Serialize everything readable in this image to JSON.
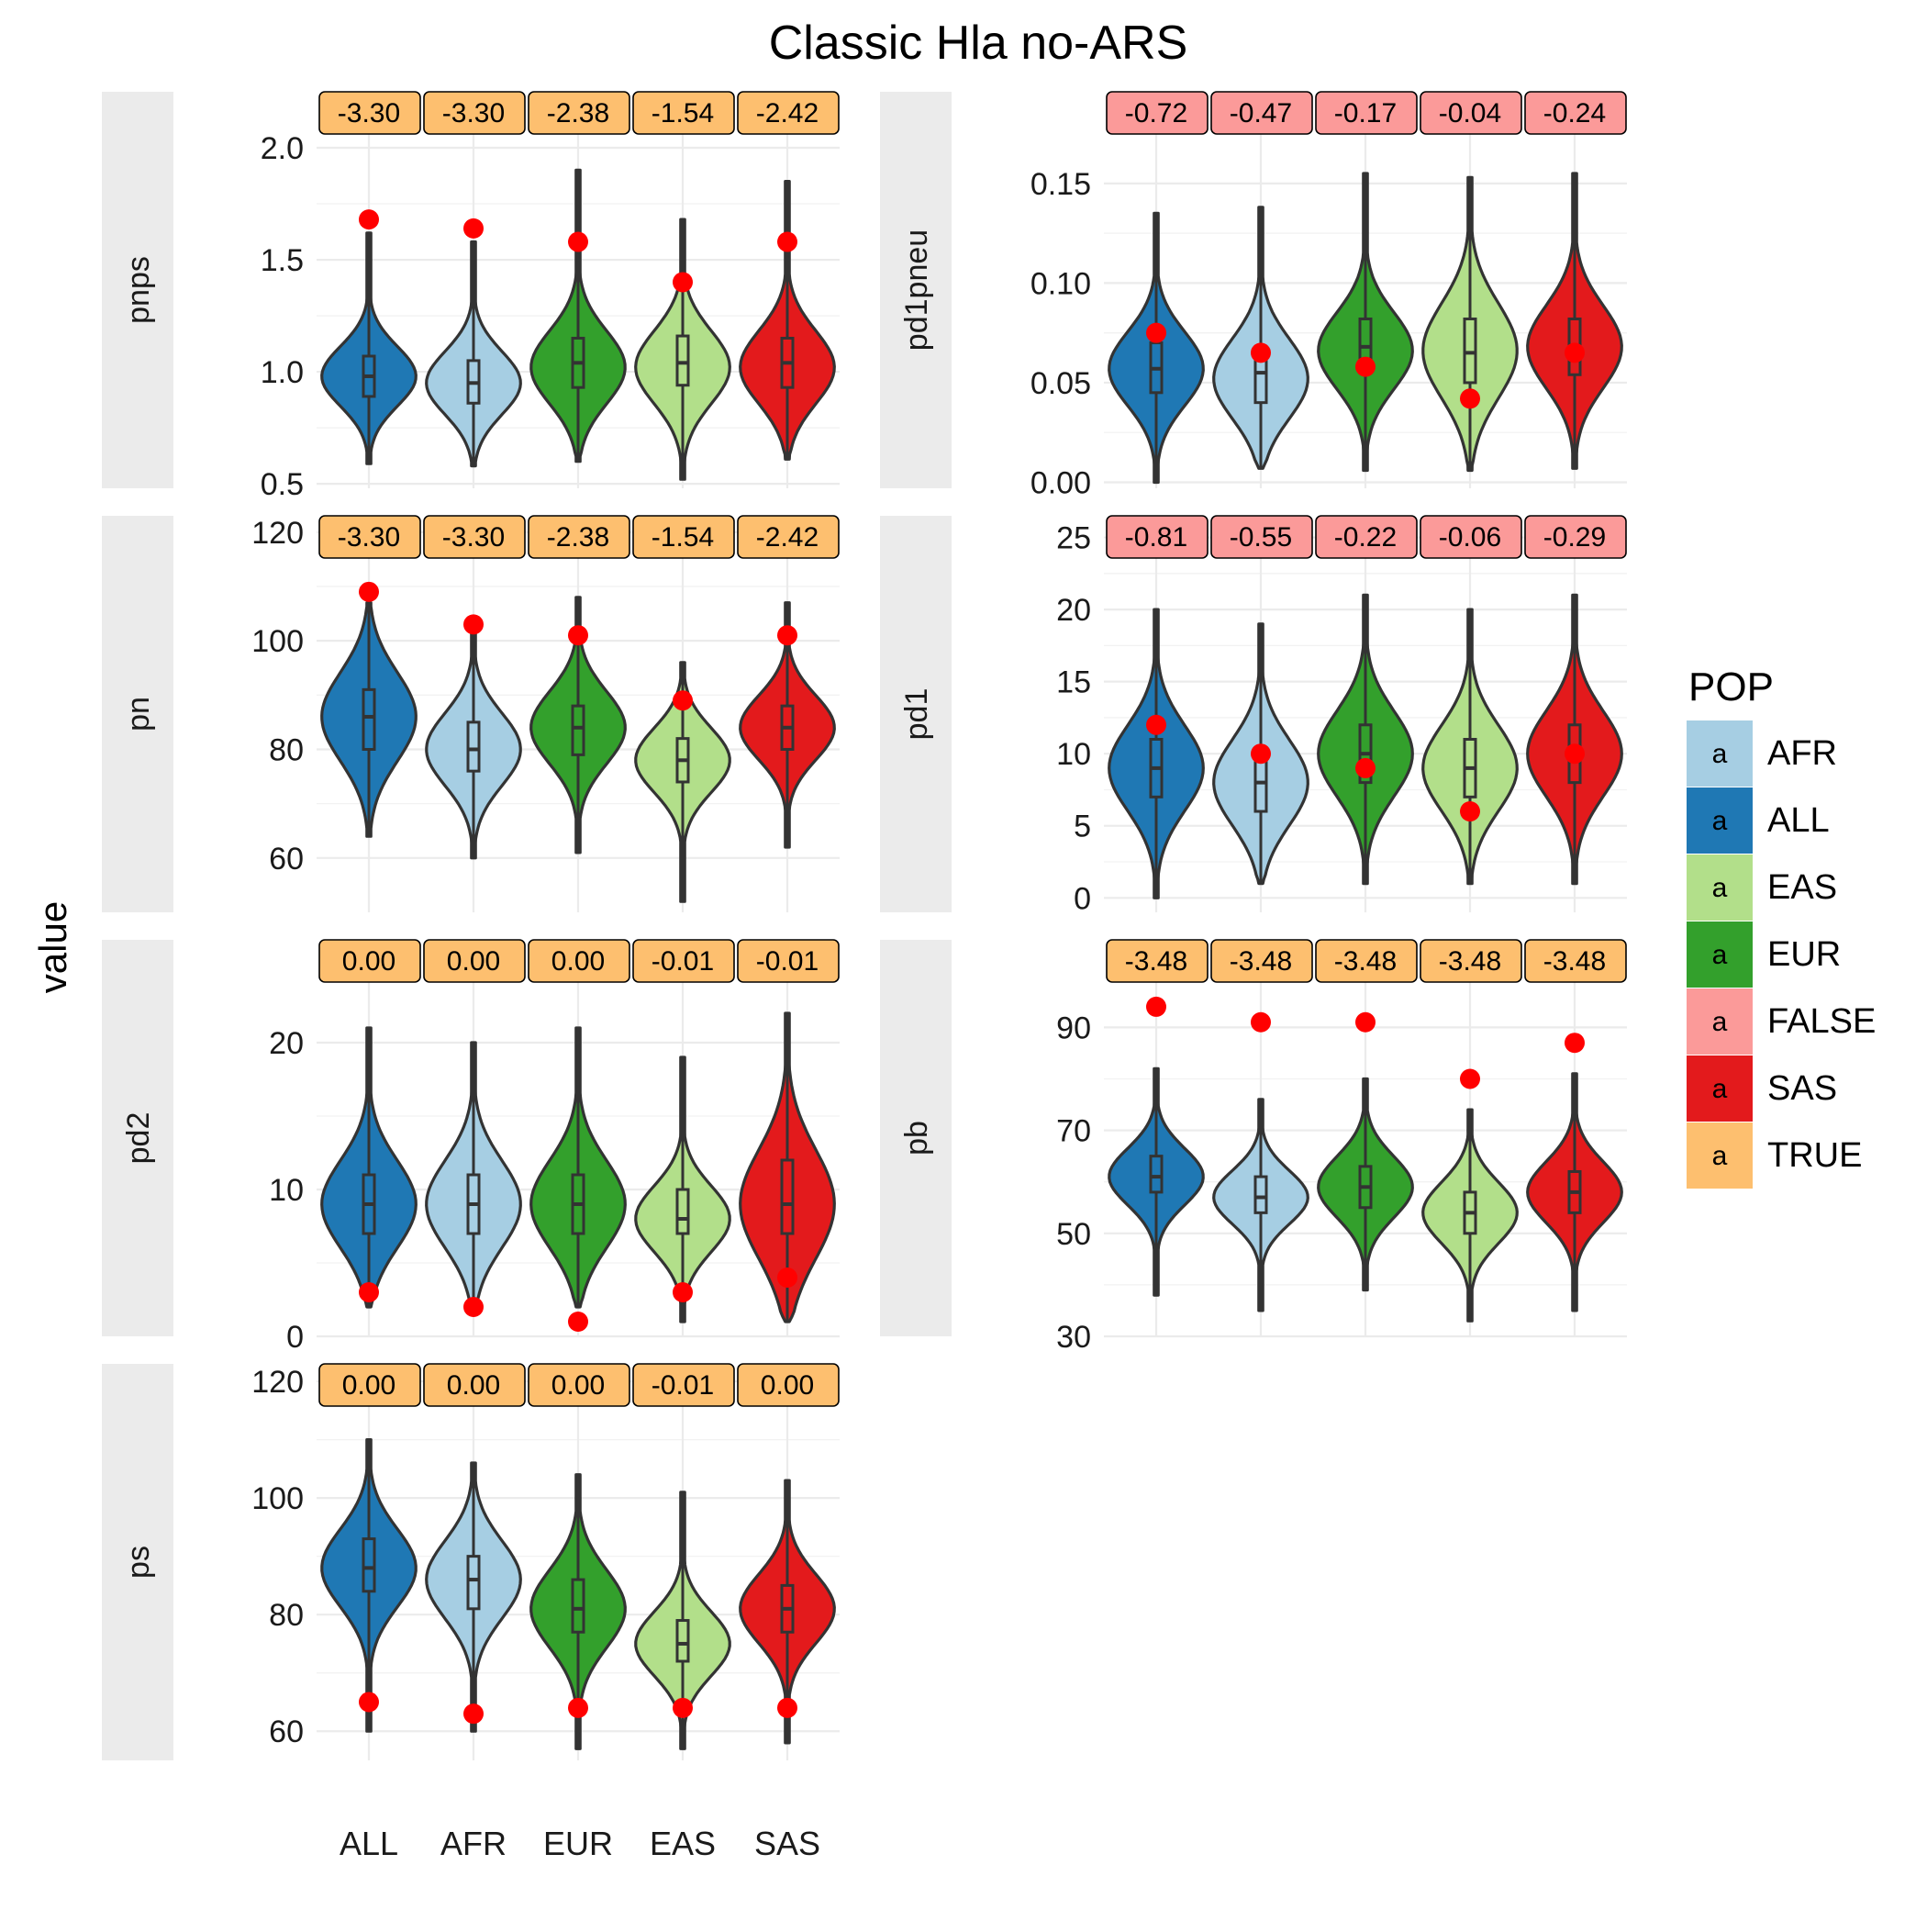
{
  "chart_data": {
    "type": "violin",
    "title": "Classic Hla no-ARS",
    "ylabel": "value",
    "xlabel": "",
    "categories": [
      "ALL",
      "AFR",
      "EUR",
      "EAS",
      "SAS"
    ],
    "category_colors": {
      "ALL": "#1f78b4",
      "AFR": "#a6cee3",
      "EUR": "#33a02c",
      "EAS": "#b2df8a",
      "SAS": "#e31a1c"
    },
    "legend": {
      "title": "POP",
      "position": "right",
      "key_glyph": "a",
      "entries": [
        {
          "label": "AFR",
          "color": "#a6cee3"
        },
        {
          "label": "ALL",
          "color": "#1f78b4"
        },
        {
          "label": "EAS",
          "color": "#b2df8a"
        },
        {
          "label": "EUR",
          "color": "#33a02c"
        },
        {
          "label": "FALSE",
          "color": "#fb9a99"
        },
        {
          "label": "SAS",
          "color": "#e31a1c"
        },
        {
          "label": "TRUE",
          "color": "#fdbf6f"
        }
      ]
    },
    "observed_point_color": "#ff0000",
    "grid": true,
    "panels": [
      {
        "name": "pnps",
        "col": 0,
        "row": 0,
        "ylim": [
          0.48,
          2.25
        ],
        "ticks": [
          0.5,
          1.0,
          1.5,
          2.0
        ],
        "tick_labels": [
          "0.5",
          "1.0",
          "1.5",
          "2.0"
        ],
        "labels": [
          "-3.30",
          "-3.30",
          "-2.38",
          "-1.54",
          "-2.42"
        ],
        "label_significant": [
          true,
          true,
          true,
          true,
          true
        ],
        "stats": [
          {
            "min": 0.59,
            "q1": 0.89,
            "median": 0.98,
            "q3": 1.07,
            "max": 1.62,
            "mode": 0.98,
            "observed": 1.68
          },
          {
            "min": 0.58,
            "q1": 0.86,
            "median": 0.95,
            "q3": 1.05,
            "max": 1.58,
            "mode": 0.95,
            "observed": 1.64
          },
          {
            "min": 0.6,
            "q1": 0.93,
            "median": 1.04,
            "q3": 1.15,
            "max": 1.9,
            "mode": 1.02,
            "observed": 1.58
          },
          {
            "min": 0.52,
            "q1": 0.94,
            "median": 1.04,
            "q3": 1.16,
            "max": 1.68,
            "mode": 1.02,
            "observed": 1.4
          },
          {
            "min": 0.61,
            "q1": 0.93,
            "median": 1.04,
            "q3": 1.15,
            "max": 1.85,
            "mode": 1.02,
            "observed": 1.58
          }
        ]
      },
      {
        "name": "pn",
        "col": 0,
        "row": 1,
        "ylim": [
          50,
          123
        ],
        "ticks": [
          60,
          80,
          100,
          120
        ],
        "tick_labels": [
          "60",
          "80",
          "100",
          "120"
        ],
        "labels": [
          "-3.30",
          "-3.30",
          "-2.38",
          "-1.54",
          "-2.42"
        ],
        "label_significant": [
          true,
          true,
          true,
          true,
          true
        ],
        "stats": [
          {
            "min": 64,
            "q1": 80,
            "median": 86,
            "q3": 91,
            "max": 107,
            "mode": 86,
            "observed": 109
          },
          {
            "min": 60,
            "q1": 76,
            "median": 80,
            "q3": 85,
            "max": 102,
            "mode": 80,
            "observed": 103
          },
          {
            "min": 61,
            "q1": 79,
            "median": 84,
            "q3": 88,
            "max": 108,
            "mode": 84,
            "observed": 101
          },
          {
            "min": 52,
            "q1": 74,
            "median": 78,
            "q3": 82,
            "max": 96,
            "mode": 78,
            "observed": 89
          },
          {
            "min": 62,
            "q1": 80,
            "median": 84,
            "q3": 88,
            "max": 107,
            "mode": 84,
            "observed": 101
          }
        ]
      },
      {
        "name": "pd2",
        "col": 0,
        "row": 2,
        "ylim": [
          0,
          27
        ],
        "ticks": [
          0,
          10,
          20
        ],
        "tick_labels": [
          "0",
          "10",
          "20"
        ],
        "labels": [
          "0.00",
          "0.00",
          "0.00",
          "-0.01",
          "-0.01"
        ],
        "label_significant": [
          true,
          true,
          true,
          true,
          true
        ],
        "stats": [
          {
            "min": 2,
            "q1": 7,
            "median": 9,
            "q3": 11,
            "max": 21,
            "mode": 9,
            "observed": 3
          },
          {
            "min": 2,
            "q1": 7,
            "median": 9,
            "q3": 11,
            "max": 20,
            "mode": 9,
            "observed": 2
          },
          {
            "min": 2,
            "q1": 7,
            "median": 9,
            "q3": 11,
            "max": 21,
            "mode": 9,
            "observed": 1
          },
          {
            "min": 1,
            "q1": 7,
            "median": 8,
            "q3": 10,
            "max": 19,
            "mode": 8,
            "observed": 3
          },
          {
            "min": 1,
            "q1": 7,
            "median": 9,
            "q3": 12,
            "max": 22,
            "mode": 9,
            "observed": 4
          }
        ]
      },
      {
        "name": "ps",
        "col": 0,
        "row": 3,
        "ylim": [
          55,
          123
        ],
        "ticks": [
          60,
          80,
          100,
          120
        ],
        "tick_labels": [
          "60",
          "80",
          "100",
          "120"
        ],
        "labels": [
          "0.00",
          "0.00",
          "0.00",
          "-0.01",
          "0.00"
        ],
        "label_significant": [
          true,
          true,
          true,
          true,
          true
        ],
        "stats": [
          {
            "min": 60,
            "q1": 84,
            "median": 88,
            "q3": 93,
            "max": 110,
            "mode": 88,
            "observed": 65
          },
          {
            "min": 60,
            "q1": 81,
            "median": 86,
            "q3": 90,
            "max": 106,
            "mode": 86,
            "observed": 63
          },
          {
            "min": 57,
            "q1": 77,
            "median": 81,
            "q3": 86,
            "max": 104,
            "mode": 81,
            "observed": 64
          },
          {
            "min": 57,
            "q1": 72,
            "median": 75,
            "q3": 79,
            "max": 101,
            "mode": 75,
            "observed": 64
          },
          {
            "min": 58,
            "q1": 77,
            "median": 81,
            "q3": 85,
            "max": 103,
            "mode": 81,
            "observed": 64
          }
        ]
      },
      {
        "name": "pd1pneu",
        "col": 1,
        "row": 0,
        "ylim": [
          -0.003,
          0.196
        ],
        "ticks": [
          0.0,
          0.05,
          0.1,
          0.15
        ],
        "tick_labels": [
          "0.00",
          "0.05",
          "0.10",
          "0.15"
        ],
        "labels": [
          "-0.72",
          "-0.47",
          "-0.17",
          "-0.04",
          "-0.24"
        ],
        "label_significant": [
          false,
          false,
          false,
          false,
          false
        ],
        "stats": [
          {
            "min": 0.0,
            "q1": 0.045,
            "median": 0.057,
            "q3": 0.07,
            "max": 0.135,
            "mode": 0.057,
            "observed": 0.075
          },
          {
            "min": 0.007,
            "q1": 0.04,
            "median": 0.055,
            "q3": 0.067,
            "max": 0.138,
            "mode": 0.052,
            "observed": 0.065
          },
          {
            "min": 0.006,
            "q1": 0.056,
            "median": 0.068,
            "q3": 0.082,
            "max": 0.155,
            "mode": 0.066,
            "observed": 0.058
          },
          {
            "min": 0.006,
            "q1": 0.05,
            "median": 0.065,
            "q3": 0.082,
            "max": 0.153,
            "mode": 0.066,
            "observed": 0.042
          },
          {
            "min": 0.007,
            "q1": 0.054,
            "median": 0.068,
            "q3": 0.082,
            "max": 0.155,
            "mode": 0.068,
            "observed": 0.065
          }
        ]
      },
      {
        "name": "pd1",
        "col": 1,
        "row": 1,
        "ylim": [
          -1,
          26.5
        ],
        "ticks": [
          0,
          5,
          10,
          15,
          20,
          25
        ],
        "tick_labels": [
          "0",
          "5",
          "10",
          "15",
          "20",
          "25"
        ],
        "labels": [
          "-0.81",
          "-0.55",
          "-0.22",
          "-0.06",
          "-0.29"
        ],
        "label_significant": [
          false,
          false,
          false,
          false,
          false
        ],
        "stats": [
          {
            "min": 0,
            "q1": 7,
            "median": 9,
            "q3": 11,
            "max": 20,
            "mode": 9,
            "observed": 12
          },
          {
            "min": 1,
            "q1": 6,
            "median": 8,
            "q3": 10,
            "max": 19,
            "mode": 8,
            "observed": 10
          },
          {
            "min": 1,
            "q1": 8,
            "median": 10,
            "q3": 12,
            "max": 21,
            "mode": 10,
            "observed": 9
          },
          {
            "min": 1,
            "q1": 7,
            "median": 9,
            "q3": 11,
            "max": 20,
            "mode": 9,
            "observed": 6
          },
          {
            "min": 1,
            "q1": 8,
            "median": 10,
            "q3": 12,
            "max": 21,
            "mode": 10,
            "observed": 10
          }
        ]
      },
      {
        "name": "pb",
        "col": 1,
        "row": 2,
        "ylim": [
          30,
          107
        ],
        "ticks": [
          30,
          50,
          70,
          90
        ],
        "tick_labels": [
          "30",
          "50",
          "70",
          "90"
        ],
        "labels": [
          "-3.48",
          "-3.48",
          "-3.48",
          "-3.48",
          "-3.48"
        ],
        "label_significant": [
          true,
          true,
          true,
          true,
          true
        ],
        "stats": [
          {
            "min": 38,
            "q1": 58,
            "median": 61,
            "q3": 65,
            "max": 82,
            "mode": 61,
            "observed": 94
          },
          {
            "min": 35,
            "q1": 54,
            "median": 57,
            "q3": 61,
            "max": 76,
            "mode": 57,
            "observed": 91
          },
          {
            "min": 39,
            "q1": 55,
            "median": 59,
            "q3": 63,
            "max": 80,
            "mode": 59,
            "observed": 91
          },
          {
            "min": 33,
            "q1": 50,
            "median": 54,
            "q3": 58,
            "max": 74,
            "mode": 54,
            "observed": 80
          },
          {
            "min": 35,
            "q1": 54,
            "median": 58,
            "q3": 62,
            "max": 81,
            "mode": 58,
            "observed": 87
          }
        ]
      }
    ]
  }
}
